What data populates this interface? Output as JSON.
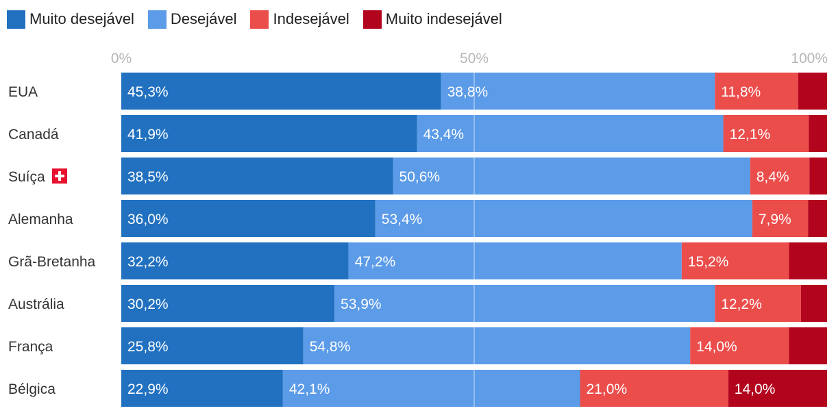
{
  "chart_data": {
    "type": "bar",
    "orientation": "horizontal",
    "stacked": true,
    "categories": [
      "EUA",
      "Canadá",
      "Suíça",
      "Alemanha",
      "Grã-Bretanha",
      "Austrália",
      "França",
      "Bélgica"
    ],
    "series": [
      {
        "name": "Muito desejável",
        "color": "#2171c0",
        "values": [
          45.3,
          41.9,
          38.5,
          36.0,
          32.2,
          30.2,
          25.8,
          22.9
        ],
        "labels": [
          "45,3%",
          "41,9%",
          "38,5%",
          "36,0%",
          "32,2%",
          "30,2%",
          "25,8%",
          "22,9%"
        ]
      },
      {
        "name": "Desejável",
        "color": "#5b9be8",
        "values": [
          38.8,
          43.4,
          50.6,
          53.4,
          47.2,
          53.9,
          54.8,
          42.1
        ],
        "labels": [
          "38,8%",
          "43,4%",
          "50,6%",
          "53,4%",
          "47,2%",
          "53,9%",
          "54,8%",
          "42,1%"
        ]
      },
      {
        "name": "Indesejável",
        "color": "#eb4d4b",
        "values": [
          11.8,
          12.1,
          8.4,
          7.9,
          15.2,
          12.2,
          14.0,
          21.0
        ],
        "labels": [
          "11,8%",
          "12,1%",
          "8,4%",
          "7,9%",
          "15,2%",
          "12,2%",
          "14,0%",
          "21,0%"
        ]
      },
      {
        "name": "Muito indesejável",
        "color": "#b3041e",
        "values": [
          4.1,
          2.6,
          2.5,
          2.7,
          5.4,
          3.7,
          5.4,
          14.0
        ],
        "labels": [
          "",
          "",
          "",
          "",
          "",
          "",
          "",
          "14,0%"
        ]
      }
    ],
    "xticks": [
      "0%",
      "50%",
      "100%"
    ],
    "xlim": [
      0,
      100
    ],
    "legend_position": "top-left",
    "gridline_at": 50,
    "flag_category": "Suíça",
    "flag_icon": "swiss-flag-icon"
  }
}
